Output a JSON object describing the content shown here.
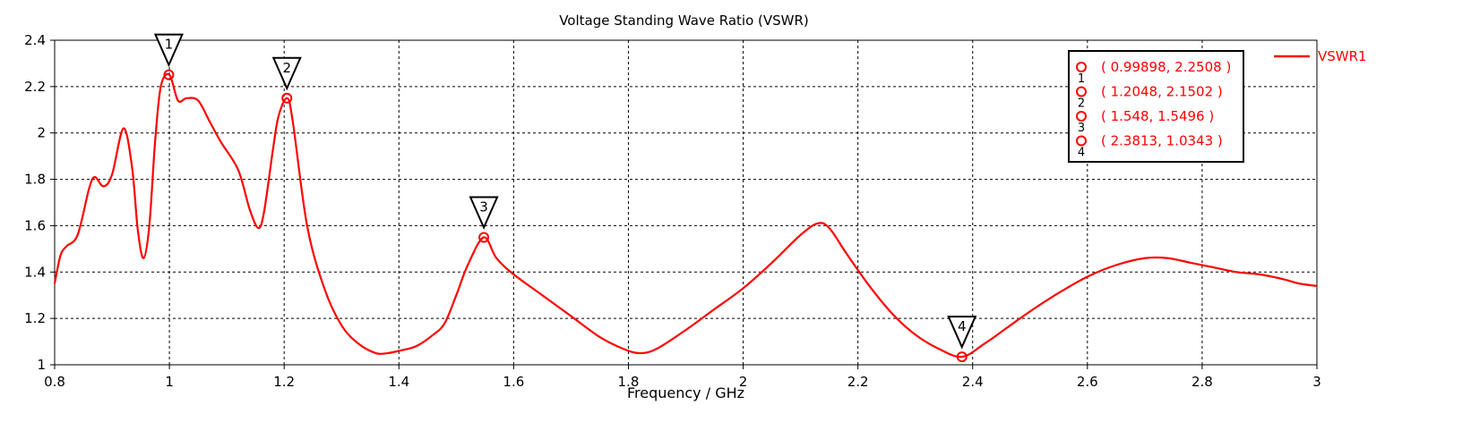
{
  "chart_data": {
    "type": "line",
    "title": "Voltage Standing Wave Ratio (VSWR)",
    "xlabel": "Frequency / GHz",
    "ylabel": "",
    "xlim": [
      0.8,
      3.0
    ],
    "ylim": [
      1.0,
      2.4
    ],
    "xticks": [
      "0.8",
      "1",
      "1.2",
      "1.4",
      "1.6",
      "1.8",
      "2",
      "2.2",
      "2.4",
      "2.6",
      "2.8",
      "3"
    ],
    "yticks": [
      "1",
      "1.2",
      "1.4",
      "1.6",
      "1.8",
      "2",
      "2.2",
      "2.4"
    ],
    "grid": true,
    "legend_position": "right",
    "series": [
      {
        "name": "VSWR1",
        "color": "#ff0000",
        "x": [
          0.8,
          0.81,
          0.82,
          0.84,
          0.86,
          0.87,
          0.885,
          0.9,
          0.92,
          0.935,
          0.945,
          0.955,
          0.965,
          0.975,
          0.985,
          1.0,
          1.015,
          1.03,
          1.05,
          1.07,
          1.09,
          1.12,
          1.14,
          1.155,
          1.165,
          1.18,
          1.19,
          1.205,
          1.215,
          1.24,
          1.27,
          1.3,
          1.33,
          1.36,
          1.38,
          1.4,
          1.43,
          1.46,
          1.48,
          1.5,
          1.52,
          1.548,
          1.57,
          1.6,
          1.65,
          1.7,
          1.75,
          1.79,
          1.82,
          1.85,
          1.9,
          1.95,
          2.0,
          2.05,
          2.1,
          2.13,
          2.15,
          2.18,
          2.22,
          2.26,
          2.3,
          2.34,
          2.3813,
          2.42,
          2.46,
          2.5,
          2.55,
          2.6,
          2.65,
          2.7,
          2.74,
          2.78,
          2.82,
          2.86,
          2.9,
          2.94,
          2.97,
          3.0
        ],
        "y": [
          1.35,
          1.47,
          1.51,
          1.56,
          1.76,
          1.81,
          1.77,
          1.82,
          2.02,
          1.85,
          1.58,
          1.46,
          1.6,
          1.96,
          2.2,
          2.2508,
          2.14,
          2.15,
          2.14,
          2.05,
          1.96,
          1.84,
          1.67,
          1.59,
          1.66,
          1.92,
          2.07,
          2.1502,
          2.05,
          1.6,
          1.33,
          1.17,
          1.09,
          1.05,
          1.05,
          1.06,
          1.08,
          1.13,
          1.18,
          1.3,
          1.43,
          1.5496,
          1.46,
          1.39,
          1.3,
          1.21,
          1.12,
          1.07,
          1.05,
          1.07,
          1.15,
          1.24,
          1.33,
          1.44,
          1.56,
          1.61,
          1.59,
          1.48,
          1.34,
          1.22,
          1.13,
          1.07,
          1.0343,
          1.09,
          1.16,
          1.23,
          1.31,
          1.38,
          1.43,
          1.46,
          1.46,
          1.44,
          1.42,
          1.4,
          1.39,
          1.37,
          1.35,
          1.34
        ]
      }
    ],
    "markers": [
      {
        "id": "1",
        "x": 0.99898,
        "y": 2.2508,
        "label": "( 0.99898, 2.2508 )"
      },
      {
        "id": "2",
        "x": 1.2048,
        "y": 2.1502,
        "label": "( 1.2048, 2.1502 )"
      },
      {
        "id": "3",
        "x": 1.548,
        "y": 1.5496,
        "label": "( 1.548, 1.5496 )"
      },
      {
        "id": "4",
        "x": 2.3813,
        "y": 1.0343,
        "label": "( 2.3813, 1.0343 )"
      }
    ]
  }
}
